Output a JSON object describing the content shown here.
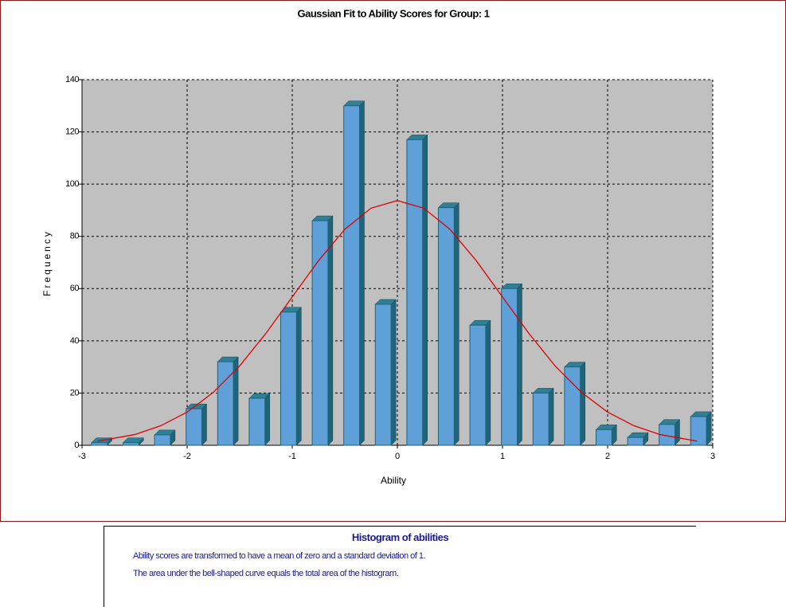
{
  "chart_data": {
    "type": "histogram",
    "title": "Gaussian Fit to Ability  Scores for Group: 1",
    "xlabel": "Ability",
    "ylabel": "Frequency",
    "bins": [
      -3,
      -2.7,
      -2.4,
      -2.1,
      -1.8,
      -1.5,
      -1.2,
      -0.9,
      -0.6,
      -0.3,
      0,
      0.3,
      0.6,
      0.9,
      1.2,
      1.5,
      1.8,
      2.1,
      2.4,
      2.7,
      3
    ],
    "values": [
      1,
      1,
      4,
      14,
      32,
      18,
      51,
      86,
      130,
      54,
      117,
      91,
      46,
      60,
      20,
      30,
      6,
      3,
      8,
      11
    ],
    "color": "#5fa0d8",
    "curve": {
      "name": "Gaussian fit",
      "color": "#e00000",
      "x": [
        -2.85,
        -2.5,
        -2.25,
        -2,
        -1.75,
        -1.5,
        -1.25,
        -1,
        -0.75,
        -0.5,
        -0.25,
        0,
        0.25,
        0.5,
        0.75,
        1,
        1.25,
        1.5,
        1.75,
        2,
        2.25,
        2.5,
        2.85
      ],
      "values": [
        1.6,
        4.1,
        7.5,
        12.7,
        20.3,
        30.4,
        42.9,
        56.8,
        70.7,
        82.7,
        90.8,
        93.7,
        90.8,
        82.7,
        70.7,
        56.8,
        42.9,
        30.4,
        20.3,
        12.7,
        7.5,
        4.1,
        1.6
      ]
    },
    "xlim": [
      -3,
      3
    ],
    "xticks": [
      -3,
      -2,
      -1,
      0,
      1,
      2,
      3
    ],
    "ylim": [
      0,
      140
    ],
    "yticks": [
      0,
      20,
      40,
      60,
      80,
      100,
      120,
      140
    ],
    "grid": true
  },
  "notes": {
    "heading": "Histogram of abilities",
    "lines": [
      "Ability scores are transformed to have a mean of zero and a standard deviation of 1.",
      "The area under the bell-shaped curve equals the total area of the histogram."
    ]
  }
}
